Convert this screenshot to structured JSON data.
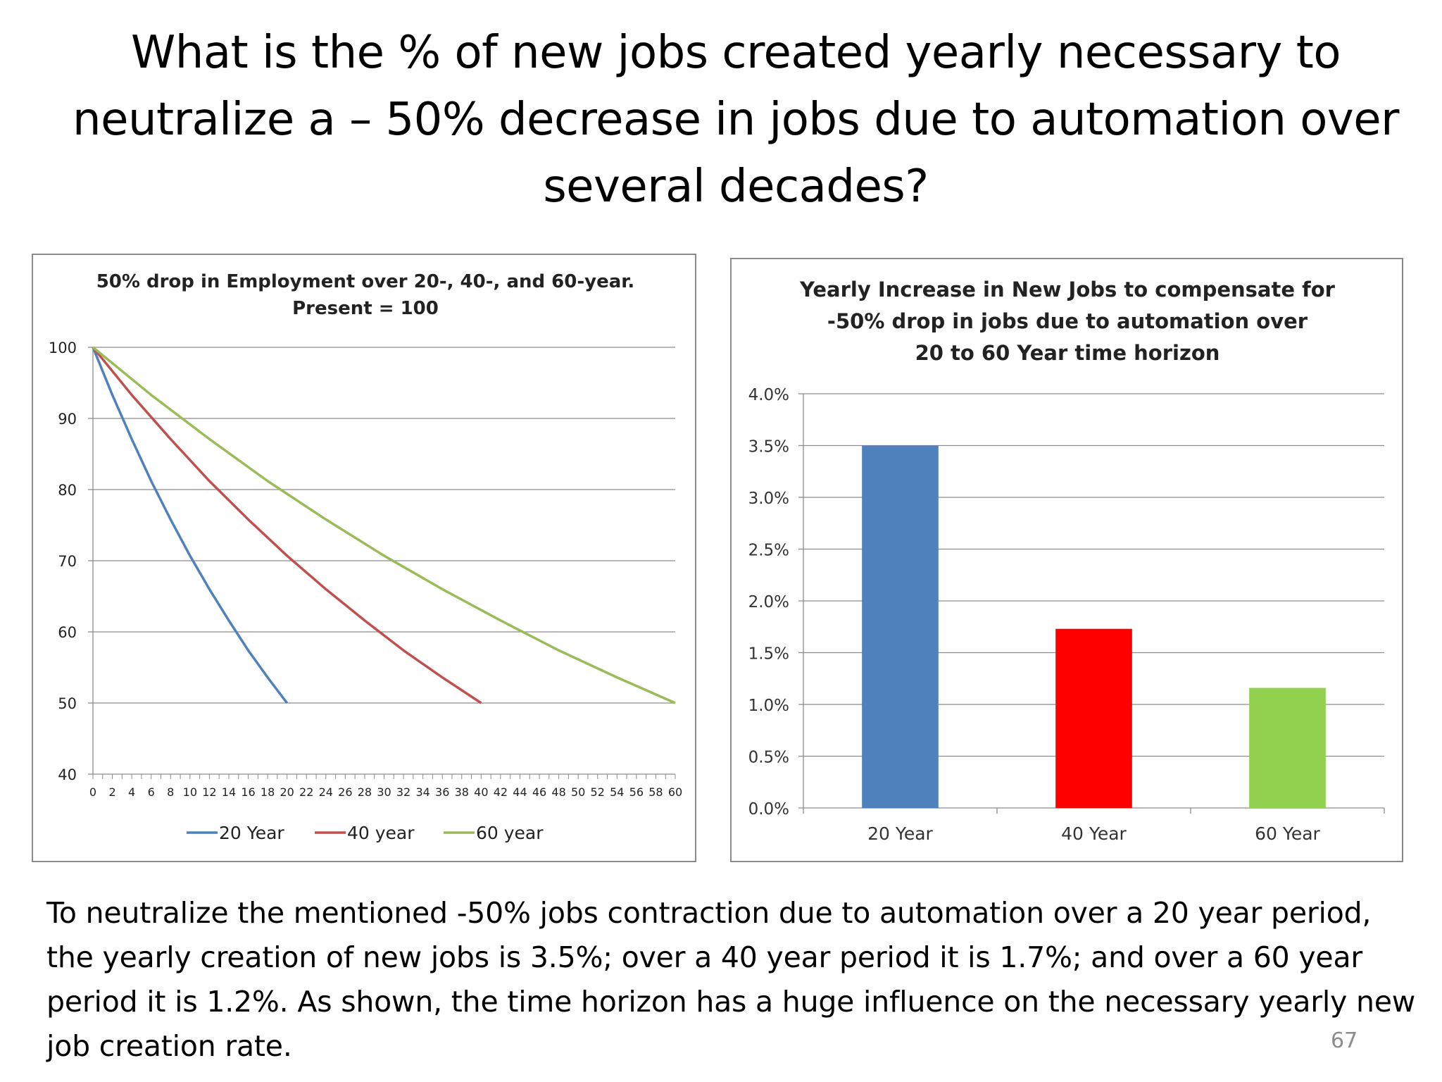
{
  "slide": {
    "title": "What is the % of new jobs created yearly necessary to neutralize a – 50% decrease in jobs due to automation over several decades?",
    "caption": "To neutralize the mentioned -50% jobs contraction due to automation over a 20 year period, the yearly creation of new jobs is 3.5%; over a 40 year period it is 1.7%; and over a 60 year period it is 1.2%.  As shown, the time horizon has a huge influence on the necessary yearly new job creation rate.",
    "page_number": "67"
  },
  "chart_data": [
    {
      "type": "line",
      "title_lines": [
        "50% drop in Employment over 20-, 40-, and 60-year.",
        "Present = 100"
      ],
      "xlabel": "",
      "ylabel": "",
      "xlim": [
        0,
        60
      ],
      "ylim": [
        40,
        100
      ],
      "y_ticks": [
        40,
        50,
        60,
        70,
        80,
        90,
        100
      ],
      "x_tick_labels": [
        "0",
        "2",
        "4",
        "6",
        "8",
        "10",
        "12",
        "14",
        "16",
        "18",
        "20",
        "22",
        "24",
        "26",
        "28",
        "30",
        "32",
        "34",
        "36",
        "38",
        "40",
        "42",
        "44",
        "46",
        "48",
        "50",
        "52",
        "54",
        "56",
        "58",
        "60"
      ],
      "grid": true,
      "legend_position": "bottom",
      "series": [
        {
          "name": "20 Year",
          "color": "#4F81BD",
          "x": [
            0,
            2,
            4,
            6,
            8,
            10,
            12,
            14,
            16,
            18,
            20
          ],
          "values": [
            100,
            93.3,
            87.1,
            81.2,
            75.8,
            70.7,
            66,
            61.6,
            57.4,
            53.6,
            50
          ]
        },
        {
          "name": "40 year",
          "color": "#C0504D",
          "x": [
            0,
            4,
            8,
            12,
            16,
            20,
            24,
            28,
            32,
            36,
            40
          ],
          "values": [
            100,
            93.3,
            87.1,
            81.2,
            75.8,
            70.7,
            66,
            61.6,
            57.4,
            53.6,
            50
          ]
        },
        {
          "name": "60 year",
          "color": "#9BBB59",
          "x": [
            0,
            6,
            12,
            18,
            24,
            30,
            36,
            42,
            48,
            54,
            60
          ],
          "values": [
            100,
            93.3,
            87.1,
            81.2,
            75.8,
            70.7,
            66,
            61.6,
            57.4,
            53.6,
            50
          ]
        }
      ]
    },
    {
      "type": "bar",
      "title_lines": [
        "Yearly Increase in New Jobs to compensate for",
        "-50% drop in jobs due to automation over",
        "20 to 60 Year time horizon"
      ],
      "xlabel": "",
      "ylabel": "",
      "categories": [
        "20 Year",
        "40 Year",
        "60 Year"
      ],
      "values": [
        3.5,
        1.73,
        1.16
      ],
      "colors": [
        "#4F81BD",
        "#FF0000",
        "#92D050"
      ],
      "ylim": [
        0,
        4
      ],
      "y_tick_labels": [
        "0.0%",
        "0.5%",
        "1.0%",
        "1.5%",
        "2.0%",
        "2.5%",
        "3.0%",
        "3.5%",
        "4.0%"
      ],
      "grid": true
    }
  ]
}
